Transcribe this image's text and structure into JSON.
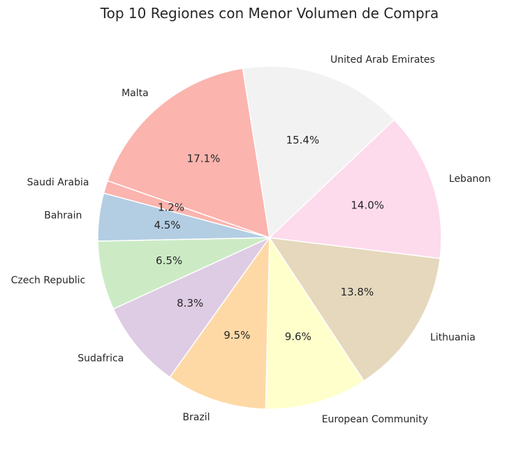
{
  "chart_data": {
    "type": "pie",
    "title": "Top 10 Regiones con Menor Volumen de Compra",
    "start_angle_deg": 99,
    "direction": "counterclockwise",
    "slices": [
      {
        "label": "Malta",
        "value": 17.1,
        "pct_label": "17.1%",
        "color": "#fbb4ae"
      },
      {
        "label": "Saudi Arabia",
        "value": 1.2,
        "pct_label": "1.2%",
        "color": "#fbb4ae"
      },
      {
        "label": "Bahrain",
        "value": 4.5,
        "pct_label": "4.5%",
        "color": "#b3cde3"
      },
      {
        "label": "Czech Republic",
        "value": 6.5,
        "pct_label": "6.5%",
        "color": "#ccebc5"
      },
      {
        "label": "Sudafrica",
        "value": 8.3,
        "pct_label": "8.3%",
        "color": "#decbe4"
      },
      {
        "label": "Brazil",
        "value": 9.5,
        "pct_label": "9.5%",
        "color": "#fed9a6"
      },
      {
        "label": "European Community",
        "value": 9.6,
        "pct_label": "9.6%",
        "color": "#ffffcc"
      },
      {
        "label": "Lithuania",
        "value": 13.8,
        "pct_label": "13.8%",
        "color": "#e5d8bd"
      },
      {
        "label": "Lebanon",
        "value": 14.0,
        "pct_label": "14.0%",
        "color": "#fddaec"
      },
      {
        "label": "United Arab Emirates",
        "value": 15.4,
        "pct_label": "15.4%",
        "color": "#f2f2f2"
      }
    ]
  }
}
